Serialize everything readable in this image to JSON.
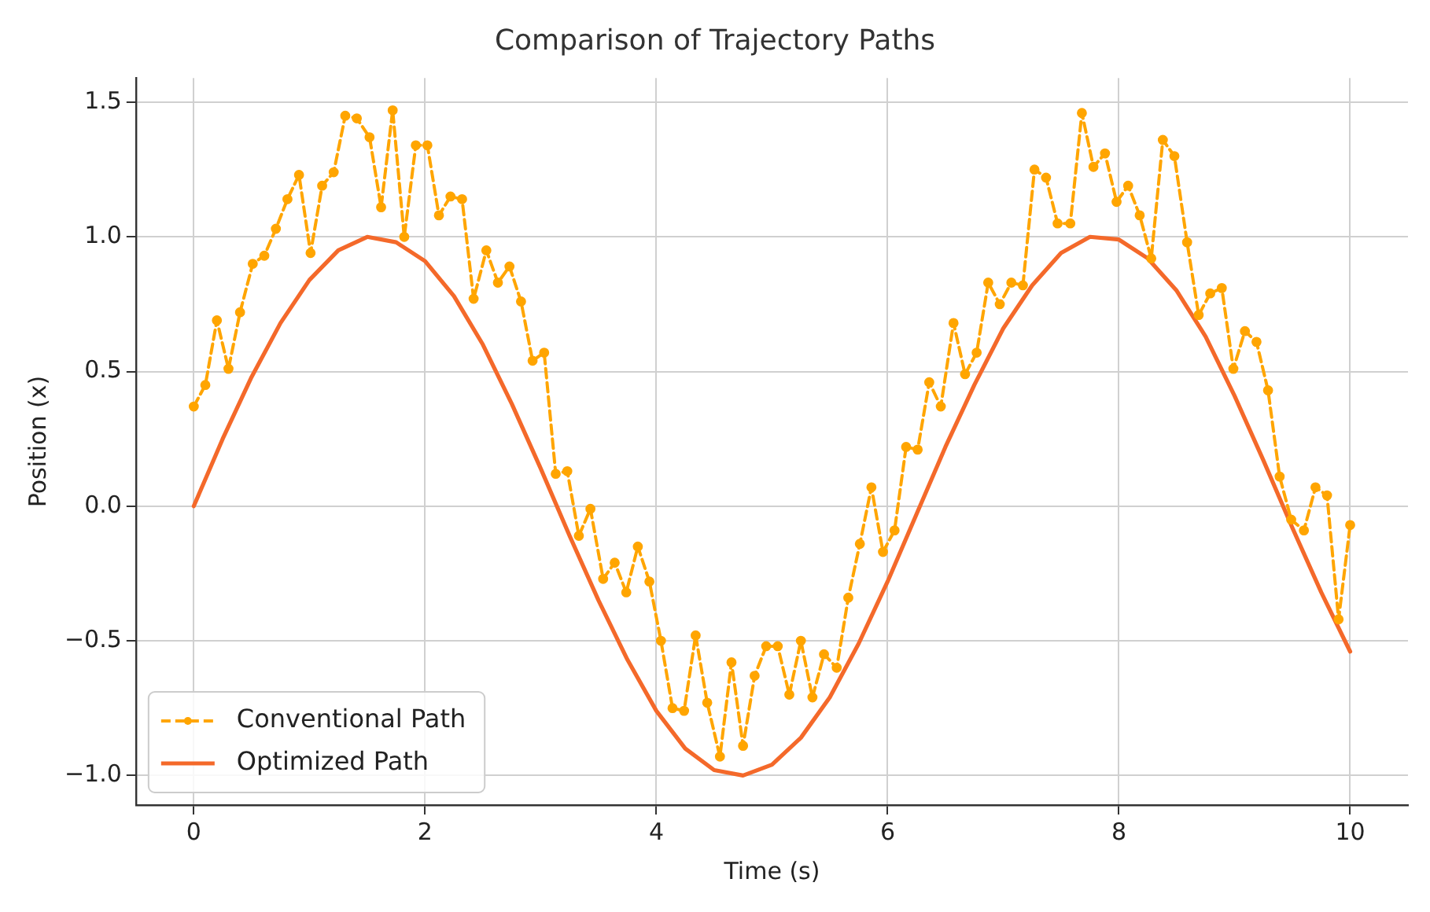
{
  "chart_data": {
    "type": "line",
    "title": "Comparison of Trajectory Paths",
    "xlabel": "Time (s)",
    "ylabel": "Position (x)",
    "xlim": [
      -0.5,
      10.5
    ],
    "ylim": [
      -1.11,
      1.59
    ],
    "xticks": [
      0,
      2,
      4,
      6,
      8,
      10
    ],
    "yticks": [
      {
        "value": -1.0,
        "label": "−1.0"
      },
      {
        "value": -0.5,
        "label": "−0.5"
      },
      {
        "value": 0,
        "label": "0.0"
      },
      {
        "value": 0.5,
        "label": "0.5"
      },
      {
        "value": 1.0,
        "label": "1.0"
      },
      {
        "value": 1.5,
        "label": "1.5"
      }
    ],
    "grid": true,
    "legend": "bottom left",
    "series": [
      {
        "name": "Conventional Path",
        "color": "#ffa500",
        "marker": "circle",
        "line_style": "dashed",
        "x": [
          0,
          0.1,
          0.2,
          0.3,
          0.4,
          0.51,
          0.61,
          0.71,
          0.81,
          0.91,
          1.01,
          1.11,
          1.21,
          1.31,
          1.41,
          1.52,
          1.62,
          1.72,
          1.82,
          1.92,
          2.02,
          2.12,
          2.22,
          2.32,
          2.42,
          2.53,
          2.63,
          2.73,
          2.83,
          2.93,
          3.03,
          3.13,
          3.23,
          3.33,
          3.43,
          3.54,
          3.64,
          3.74,
          3.84,
          3.94,
          4.04,
          4.14,
          4.24,
          4.34,
          4.44,
          4.55,
          4.65,
          4.75,
          4.85,
          4.95,
          5.05,
          5.15,
          5.25,
          5.35,
          5.45,
          5.56,
          5.66,
          5.76,
          5.86,
          5.96,
          6.06,
          6.16,
          6.26,
          6.36,
          6.46,
          6.57,
          6.67,
          6.77,
          6.87,
          6.97,
          7.07,
          7.17,
          7.27,
          7.37,
          7.47,
          7.58,
          7.68,
          7.78,
          7.88,
          7.98,
          8.08,
          8.18,
          8.28,
          8.38,
          8.48,
          8.59,
          8.69,
          8.79,
          8.89,
          8.99,
          9.09,
          9.19,
          9.29,
          9.39,
          9.49,
          9.6,
          9.7,
          9.8,
          9.9,
          10
        ],
        "values": [
          0.37,
          0.45,
          0.69,
          0.51,
          0.72,
          0.9,
          0.93,
          1.03,
          1.14,
          1.23,
          0.94,
          1.19,
          1.24,
          1.45,
          1.44,
          1.37,
          1.11,
          1.47,
          1.0,
          1.34,
          1.34,
          1.08,
          1.15,
          1.14,
          0.77,
          0.95,
          0.83,
          0.89,
          0.76,
          0.54,
          0.57,
          0.12,
          0.13,
          -0.11,
          -0.01,
          -0.27,
          -0.21,
          -0.32,
          -0.15,
          -0.28,
          -0.5,
          -0.75,
          -0.76,
          -0.48,
          -0.73,
          -0.93,
          -0.58,
          -0.89,
          -0.63,
          -0.52,
          -0.52,
          -0.7,
          -0.5,
          -0.71,
          -0.55,
          -0.6,
          -0.34,
          -0.14,
          0.07,
          -0.17,
          -0.09,
          0.22,
          0.21,
          0.46,
          0.37,
          0.68,
          0.49,
          0.57,
          0.83,
          0.75,
          0.83,
          0.82,
          1.25,
          1.22,
          1.05,
          1.05,
          1.46,
          1.26,
          1.31,
          1.13,
          1.19,
          1.08,
          0.92,
          1.36,
          1.3,
          0.98,
          0.71,
          0.79,
          0.81,
          0.51,
          0.65,
          0.61,
          0.43,
          0.11,
          -0.05,
          -0.09,
          0.07,
          0.04,
          -0.42,
          -0.07
        ]
      },
      {
        "name": "Optimized Path",
        "color": "#f4692a",
        "marker": "none",
        "line_style": "solid",
        "x": [
          0,
          0.25,
          0.5,
          0.75,
          1,
          1.25,
          1.5,
          1.75,
          2,
          2.25,
          2.5,
          2.75,
          3,
          3.25,
          3.5,
          3.75,
          4,
          4.25,
          4.5,
          4.75,
          5,
          5.25,
          5.5,
          5.75,
          6,
          6.25,
          6.5,
          6.75,
          7,
          7.25,
          7.5,
          7.75,
          8,
          8.25,
          8.5,
          8.75,
          9,
          9.25,
          9.5,
          9.75,
          10
        ],
        "values": [
          0,
          0.25,
          0.48,
          0.68,
          0.84,
          0.95,
          1.0,
          0.98,
          0.91,
          0.78,
          0.6,
          0.38,
          0.14,
          -0.11,
          -0.35,
          -0.57,
          -0.76,
          -0.9,
          -0.98,
          -1.0,
          -0.96,
          -0.86,
          -0.71,
          -0.51,
          -0.28,
          -0.03,
          0.22,
          0.45,
          0.66,
          0.82,
          0.94,
          1.0,
          0.99,
          0.92,
          0.8,
          0.63,
          0.41,
          0.17,
          -0.08,
          -0.32,
          -0.54
        ]
      }
    ]
  }
}
